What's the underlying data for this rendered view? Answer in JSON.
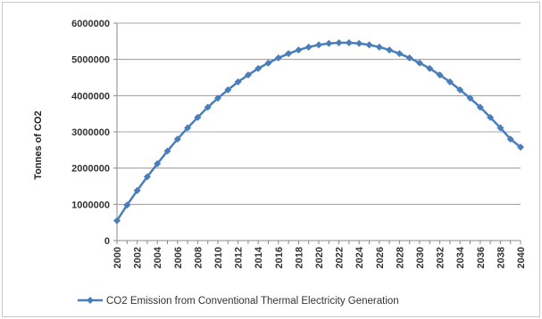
{
  "chart_data": {
    "type": "line",
    "title": "",
    "xlabel": "",
    "ylabel": "Tonnes of CO2",
    "ylim": [
      0,
      6000000
    ],
    "xlim": [
      2000,
      2040
    ],
    "yticks": [
      0,
      1000000,
      2000000,
      3000000,
      4000000,
      5000000,
      6000000
    ],
    "xticks": [
      2000,
      2002,
      2004,
      2006,
      2008,
      2010,
      2012,
      2014,
      2016,
      2018,
      2020,
      2022,
      2024,
      2026,
      2028,
      2030,
      2032,
      2034,
      2036,
      2038,
      2040
    ],
    "grid": "y",
    "legend": "bottom",
    "series": [
      {
        "name": "CO2 Emission from Conventional Thermal Electricity Generation",
        "color": "#4a7ebb",
        "marker": "diamond",
        "x": [
          2000,
          2001,
          2002,
          2003,
          2004,
          2005,
          2006,
          2007,
          2008,
          2009,
          2010,
          2011,
          2012,
          2013,
          2014,
          2015,
          2016,
          2017,
          2018,
          2019,
          2020,
          2021,
          2022,
          2023,
          2024,
          2025,
          2026,
          2027,
          2028,
          2029,
          2030,
          2031,
          2032,
          2033,
          2034,
          2035,
          2036,
          2037,
          2038,
          2039,
          2040
        ],
        "values": [
          550000,
          980000,
          1380000,
          1760000,
          2120000,
          2470000,
          2800000,
          3110000,
          3400000,
          3680000,
          3930000,
          4160000,
          4380000,
          4570000,
          4750000,
          4900000,
          5040000,
          5160000,
          5260000,
          5340000,
          5400000,
          5440000,
          5460000,
          5460000,
          5440000,
          5400000,
          5340000,
          5260000,
          5160000,
          5040000,
          4900000,
          4750000,
          4570000,
          4380000,
          4160000,
          3930000,
          3680000,
          3400000,
          3110000,
          2800000,
          2580000
        ]
      }
    ]
  }
}
